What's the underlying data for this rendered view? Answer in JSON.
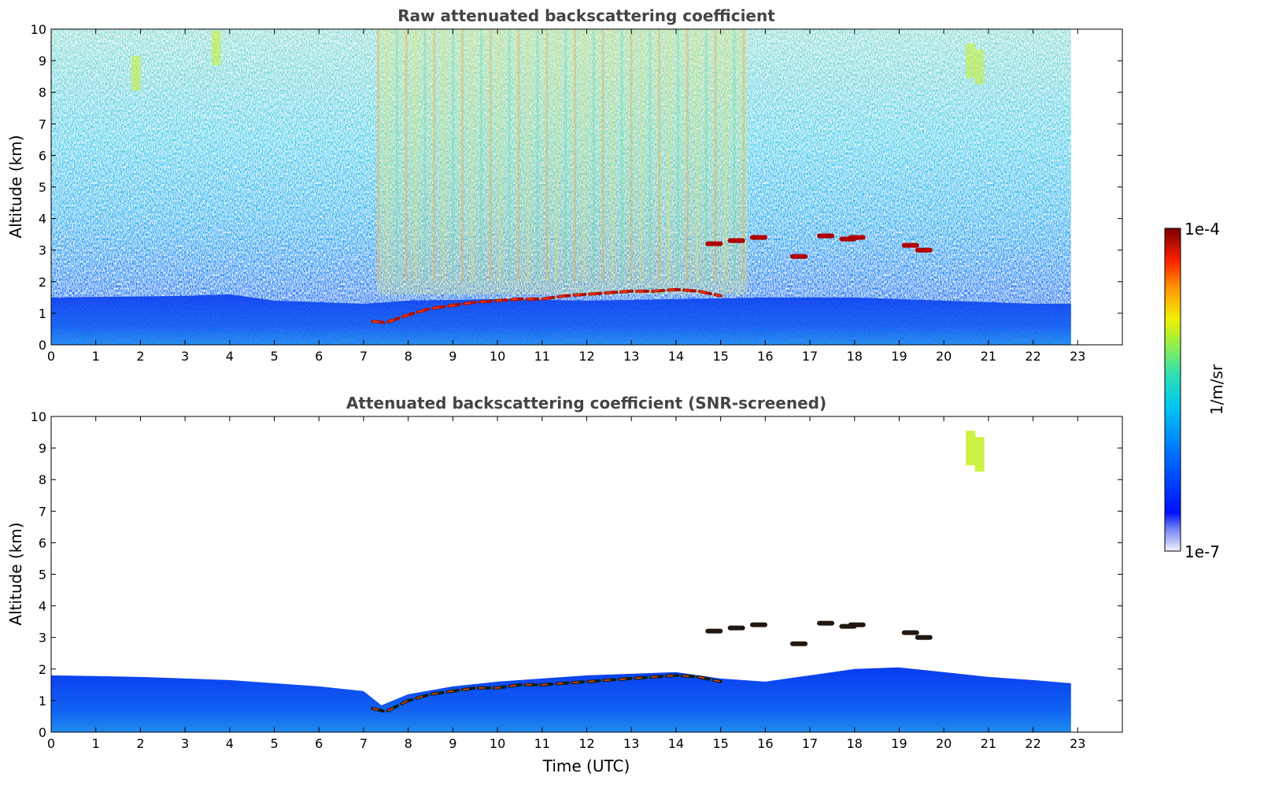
{
  "chart_data": [
    {
      "type": "heatmap",
      "title": "Raw attenuated backscattering coefficient",
      "xlabel": "",
      "ylabel": "Altitude (km)",
      "xlim": [
        0,
        24
      ],
      "ylim": [
        0,
        10
      ],
      "x_ticks": [
        "0",
        "1",
        "2",
        "3",
        "4",
        "5",
        "6",
        "7",
        "8",
        "9",
        "10",
        "11",
        "12",
        "13",
        "14",
        "15",
        "16",
        "17",
        "18",
        "19",
        "20",
        "21",
        "22",
        "23"
      ],
      "y_ticks": [
        "0",
        "1",
        "2",
        "3",
        "4",
        "5",
        "6",
        "7",
        "8",
        "9",
        "10"
      ],
      "data_end_time": 22.85,
      "boundary_layer_top_km": [
        [
          0,
          1.5
        ],
        [
          3,
          1.55
        ],
        [
          4,
          1.6
        ],
        [
          5,
          1.4
        ],
        [
          6,
          1.35
        ],
        [
          7,
          1.3
        ],
        [
          8,
          1.4
        ],
        [
          10,
          1.45
        ],
        [
          12,
          1.4
        ],
        [
          14,
          1.45
        ],
        [
          16,
          1.5
        ],
        [
          18,
          1.5
        ],
        [
          20,
          1.4
        ],
        [
          22,
          1.3
        ],
        [
          22.85,
          1.3
        ]
      ],
      "cloud_base_km": [
        [
          7.2,
          0.75
        ],
        [
          7.5,
          0.7
        ],
        [
          8,
          0.95
        ],
        [
          8.5,
          1.15
        ],
        [
          9,
          1.25
        ],
        [
          9.5,
          1.35
        ],
        [
          10,
          1.4
        ],
        [
          10.5,
          1.45
        ],
        [
          11,
          1.45
        ],
        [
          11.5,
          1.55
        ],
        [
          12,
          1.6
        ],
        [
          12.5,
          1.65
        ],
        [
          13,
          1.7
        ],
        [
          13.5,
          1.7
        ],
        [
          14,
          1.75
        ],
        [
          14.5,
          1.7
        ],
        [
          15,
          1.55
        ]
      ],
      "mid_clouds_km": [
        [
          14.8,
          3.2
        ],
        [
          15.3,
          3.3
        ],
        [
          15.8,
          3.4
        ],
        [
          16.7,
          2.8
        ],
        [
          17.3,
          3.45
        ],
        [
          17.8,
          3.35
        ],
        [
          18,
          3.4
        ],
        [
          19.2,
          3.15
        ],
        [
          19.5,
          3.0
        ]
      ],
      "cirrus_km": [
        [
          1.9,
          8.6
        ],
        [
          3.7,
          9.4
        ],
        [
          20.6,
          9.0
        ],
        [
          20.8,
          8.8
        ]
      ],
      "colorbar": {
        "min": "1e-7",
        "max": "1e-4",
        "label": "1/m/sr",
        "scale": "log"
      }
    },
    {
      "type": "heatmap",
      "title": "Attenuated backscattering coefficient (SNR-screened)",
      "xlabel": "Time (UTC)",
      "ylabel": "Altitude (km)",
      "xlim": [
        0,
        24
      ],
      "ylim": [
        0,
        10
      ],
      "x_ticks": [
        "0",
        "1",
        "2",
        "3",
        "4",
        "5",
        "6",
        "7",
        "8",
        "9",
        "10",
        "11",
        "12",
        "13",
        "14",
        "15",
        "16",
        "17",
        "18",
        "19",
        "20",
        "21",
        "22",
        "23"
      ],
      "y_ticks": [
        "0",
        "1",
        "2",
        "3",
        "4",
        "5",
        "6",
        "7",
        "8",
        "9",
        "10"
      ],
      "data_end_time": 22.85,
      "boundary_layer_top_km": [
        [
          0,
          1.8
        ],
        [
          2,
          1.75
        ],
        [
          4,
          1.65
        ],
        [
          5,
          1.55
        ],
        [
          6,
          1.45
        ],
        [
          7,
          1.3
        ],
        [
          7.4,
          0.85
        ],
        [
          8,
          1.2
        ],
        [
          9,
          1.45
        ],
        [
          10,
          1.6
        ],
        [
          11,
          1.7
        ],
        [
          12,
          1.8
        ],
        [
          13,
          1.85
        ],
        [
          14,
          1.9
        ],
        [
          15,
          1.7
        ],
        [
          16,
          1.6
        ],
        [
          17,
          1.8
        ],
        [
          18,
          2.0
        ],
        [
          19,
          2.05
        ],
        [
          20,
          1.9
        ],
        [
          21,
          1.75
        ],
        [
          22,
          1.65
        ],
        [
          22.85,
          1.55
        ]
      ],
      "cloud_base_km": [
        [
          7.2,
          0.75
        ],
        [
          7.5,
          0.65
        ],
        [
          8,
          1.0
        ],
        [
          8.5,
          1.2
        ],
        [
          9,
          1.3
        ],
        [
          9.5,
          1.4
        ],
        [
          10,
          1.4
        ],
        [
          10.5,
          1.5
        ],
        [
          11,
          1.5
        ],
        [
          11.5,
          1.55
        ],
        [
          12,
          1.6
        ],
        [
          12.5,
          1.65
        ],
        [
          13,
          1.7
        ],
        [
          13.5,
          1.75
        ],
        [
          14,
          1.8
        ],
        [
          14.5,
          1.75
        ],
        [
          15,
          1.6
        ]
      ],
      "mid_clouds_km": [
        [
          14.8,
          3.2
        ],
        [
          15.3,
          3.3
        ],
        [
          15.8,
          3.4
        ],
        [
          16.7,
          2.8
        ],
        [
          17.3,
          3.45
        ],
        [
          17.8,
          3.35
        ],
        [
          18,
          3.4
        ],
        [
          19.2,
          3.15
        ],
        [
          19.5,
          3.0
        ]
      ],
      "cirrus_km": [
        [
          20.6,
          9.0
        ],
        [
          20.8,
          8.8
        ]
      ],
      "colorbar": {
        "min": "1e-7",
        "max": "1e-4",
        "label": "1/m/sr",
        "scale": "log"
      }
    }
  ]
}
